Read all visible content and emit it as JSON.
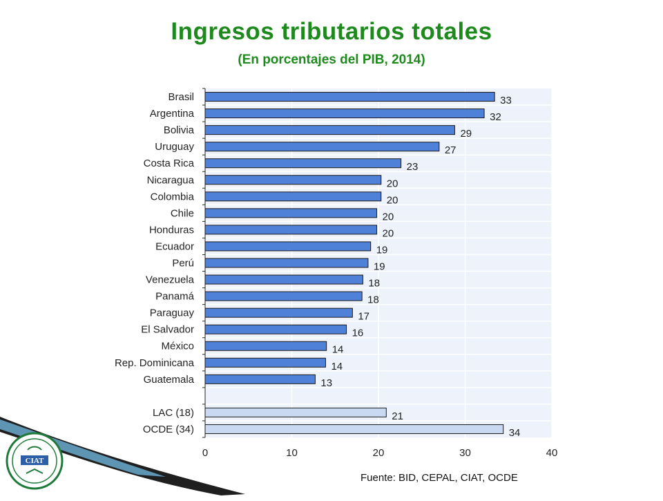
{
  "header": {
    "title": "Ingresos tributarios totales",
    "subtitle": "(En porcentajes del PIB, 2014)"
  },
  "source": "Fuente: BID, CEPAL, CIAT, OCDE",
  "logo": {
    "text": "CIAT",
    "icon": "ciat-seal-icon"
  },
  "colors": {
    "title": "#1e8a1e",
    "bar_country": "#4f81d8",
    "bar_aggregate": "#c9d9f1",
    "plot_bg": "#eef2fa",
    "bar_border": "#1a1a1a"
  },
  "chart_data": {
    "type": "bar",
    "orientation": "horizontal",
    "title": "Ingresos tributarios totales",
    "subtitle": "(En porcentajes del PIB, 2014)",
    "xlim": [
      0,
      40
    ],
    "xticks": [
      0,
      10,
      20,
      30,
      40
    ],
    "grid": true,
    "categories": [
      "Brasil",
      "Argentina",
      "Bolivia",
      "Uruguay",
      "Costa Rica",
      "Nicaragua",
      "Colombia",
      "Chile",
      "Honduras",
      "Ecuador",
      "Perú",
      "Venezuela",
      "Panamá",
      "Paraguay",
      "El Salvador",
      "México",
      "Rep. Dominicana",
      "Guatemala",
      "",
      "LAC (18)",
      "OCDE (34)"
    ],
    "values": [
      33.4,
      32.2,
      28.8,
      27.0,
      22.6,
      20.3,
      20.3,
      19.8,
      19.8,
      19.1,
      18.8,
      18.2,
      18.1,
      17.0,
      16.3,
      14.0,
      13.9,
      12.7,
      null,
      20.9,
      34.4
    ],
    "labels": [
      "33",
      "32",
      "29",
      "27",
      "23",
      "20",
      "20",
      "20",
      "20",
      "19",
      "19",
      "18",
      "18",
      "17",
      "16",
      "14",
      "14",
      "13",
      "",
      "21",
      "34"
    ],
    "group": [
      "country",
      "country",
      "country",
      "country",
      "country",
      "country",
      "country",
      "country",
      "country",
      "country",
      "country",
      "country",
      "country",
      "country",
      "country",
      "country",
      "country",
      "country",
      "gap",
      "aggregate",
      "aggregate"
    ]
  }
}
